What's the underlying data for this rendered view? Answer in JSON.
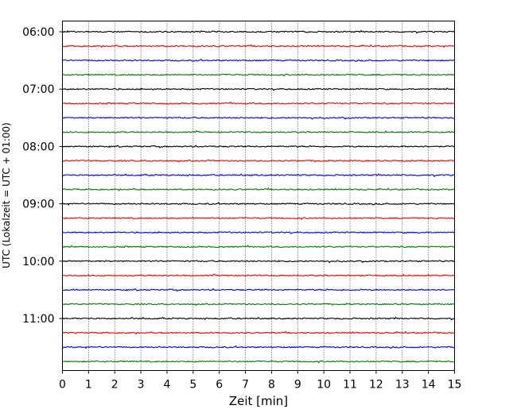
{
  "chart_data": {
    "type": "line",
    "subtype": "helicorder",
    "title": "",
    "xlabel": "Zeit  [min]",
    "ylabel": "UTC (Lokalzeit = UTC + 01:00)",
    "xlim": [
      0,
      15
    ],
    "x_ticks": [
      0,
      1,
      2,
      3,
      4,
      5,
      6,
      7,
      8,
      9,
      10,
      11,
      12,
      13,
      14,
      15
    ],
    "x_tick_labels": [
      "0",
      "1",
      "2",
      "3",
      "4",
      "5",
      "6",
      "7",
      "8",
      "9",
      "10",
      "11",
      "12",
      "13",
      "14",
      "15"
    ],
    "y_tick_labels": [
      "06:00",
      "07:00",
      "08:00",
      "09:00",
      "10:00",
      "11:00"
    ],
    "trace_interval_min": 15,
    "trace_count": 24,
    "trace_start": "06:00",
    "trace_end": "11:45",
    "trace_colors": [
      "#000000",
      "#ff0000",
      "#0000ff",
      "#007f00"
    ],
    "vertical_grid": true,
    "grid_style": "dotted",
    "legend": "none"
  }
}
